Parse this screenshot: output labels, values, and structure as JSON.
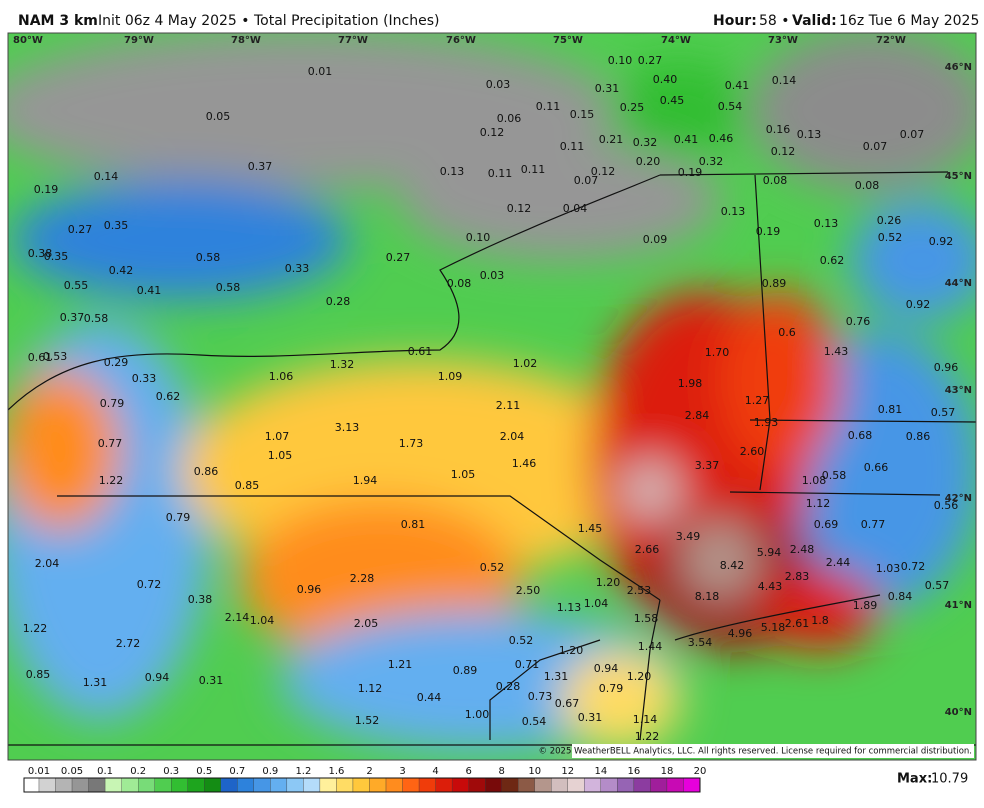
{
  "header": {
    "model": "NAM 3 km",
    "desc": "Init 06z 4 May 2025 • Total Precipitation (Inches)",
    "hour_label": "Hour:",
    "hour": "58 •",
    "valid_label": "Valid:",
    "valid": "16z Tue 6 May 2025"
  },
  "lon_labels": [
    "80°W",
    "79°W",
    "78°W",
    "77°W",
    "76°W",
    "75°W",
    "74°W",
    "73°W",
    "72°W"
  ],
  "lat_labels": [
    "46°N",
    "45°N",
    "44°N",
    "43°N",
    "42°N",
    "41°N",
    "40°N"
  ],
  "map_labels": [
    "0.01",
    "0.03",
    "0.10",
    "0.27",
    "0.40",
    "0.31",
    "0.41",
    "0.14",
    "0.45",
    "0.54",
    "0.25",
    "0.11",
    "0.15",
    "0.06",
    "0.05",
    "0.12",
    "0.21",
    "0.32",
    "0.41",
    "0.46",
    "0.16",
    "0.13",
    "0.07",
    "0.07",
    "0.12",
    "0.11",
    "0.20",
    "0.32",
    "0.37",
    "0.13",
    "0.11",
    "0.11",
    "0.12",
    "0.19",
    "0.07",
    "0.08",
    "0.08",
    "0.14",
    "0.19",
    "0.04",
    "0.12",
    "0.13",
    "0.27",
    "0.35",
    "0.13",
    "0.26",
    "0.19",
    "0.52",
    "0.92",
    "0.38",
    "0.35",
    "0.58",
    "0.09",
    "0.10",
    "0.42",
    "0.33",
    "0.27",
    "0.03",
    "0.08",
    "0.62",
    "0.55",
    "0.41",
    "0.58",
    "0.89",
    "0.92",
    "0.28",
    "0.37",
    "0.58",
    "0.76",
    "0.6",
    "0.53",
    "0.61",
    "0.61",
    "1.70",
    "1.43",
    "1.32",
    "1.02",
    "0.29",
    "0.96",
    "1.06",
    "1.09",
    "0.33",
    "1.98",
    "0.62",
    "0.79",
    "2.11",
    "1.27",
    "0.81",
    "0.57",
    "2.84",
    "1.93",
    "3.13",
    "2.04",
    "1.07",
    "0.68",
    "0.86",
    "0.77",
    "1.73",
    "2.60",
    "1.05",
    "3.37",
    "1.46",
    "0.86",
    "0.66",
    "1.05",
    "1.94",
    "1.08",
    "0.58",
    "1.22",
    "0.85",
    "1.12",
    "0.56",
    "0.79",
    "0.81",
    "1.45",
    "0.77",
    "0.69",
    "3.49",
    "5.94",
    "2.48",
    "2.66",
    "8.42",
    "2.44",
    "1.03",
    "0.72",
    "2.04",
    "0.52",
    "2.28",
    "1.20",
    "2.83",
    "4.43",
    "0.72",
    "0.96",
    "2.50",
    "2.53",
    "0.57",
    "0.84",
    "8.18",
    "0.38",
    "1.13",
    "1.04",
    "1.89",
    "2.14",
    "1.04",
    "2.05",
    "1.58",
    "5.18",
    "2.61",
    "1.8",
    "1.22",
    "4.96",
    "2.72",
    "0.52",
    "1.44",
    "3.54",
    "1.20",
    "1.21",
    "0.71",
    "0.94",
    "0.85",
    "0.94",
    "0.31",
    "1.31",
    "0.89",
    "1.31",
    "1.20",
    "1.12",
    "0.28",
    "0.79",
    "0.44",
    "0.73",
    "0.67",
    "1.00",
    "1.52",
    "0.54",
    "0.31",
    "1.14",
    "1.22"
  ],
  "copyright": "© 2025 WeatherBELL Analytics, LLC. All rights reserved. License required for commercial distribution.",
  "colorbar": {
    "labels": [
      "0.01",
      "0.05",
      "0.1",
      "0.2",
      "0.3",
      "0.5",
      "0.7",
      "0.9",
      "1.2",
      "1.6",
      "2",
      "3",
      "4",
      "6",
      "8",
      "10",
      "12",
      "14",
      "16",
      "18",
      "20"
    ],
    "colors": [
      "#ffffff",
      "#d2d2d2",
      "#b4b4b4",
      "#969696",
      "#787878",
      "#c8f5b4",
      "#a0eb96",
      "#78dc78",
      "#50cd50",
      "#32be32",
      "#1ea51e",
      "#148c14",
      "#1e64c8",
      "#2d82dc",
      "#4696e6",
      "#64aff0",
      "#8cc8f5",
      "#b4dcfa",
      "#fff09b",
      "#ffdc64",
      "#ffc83c",
      "#ffaa28",
      "#ff8c1e",
      "#ff6414",
      "#f03c0a",
      "#dc1e0a",
      "#c80a0a",
      "#a00a0a",
      "#780a0a",
      "#6e2814",
      "#8c5a46",
      "#b4968c",
      "#d2bebe",
      "#e6d2d2",
      "#d2b4dc",
      "#b48cc8",
      "#9664b4",
      "#8c3ca0",
      "#a01e9b",
      "#c80ab4",
      "#e600dc"
    ]
  },
  "max_label": "Max:",
  "max_value": "10.79"
}
